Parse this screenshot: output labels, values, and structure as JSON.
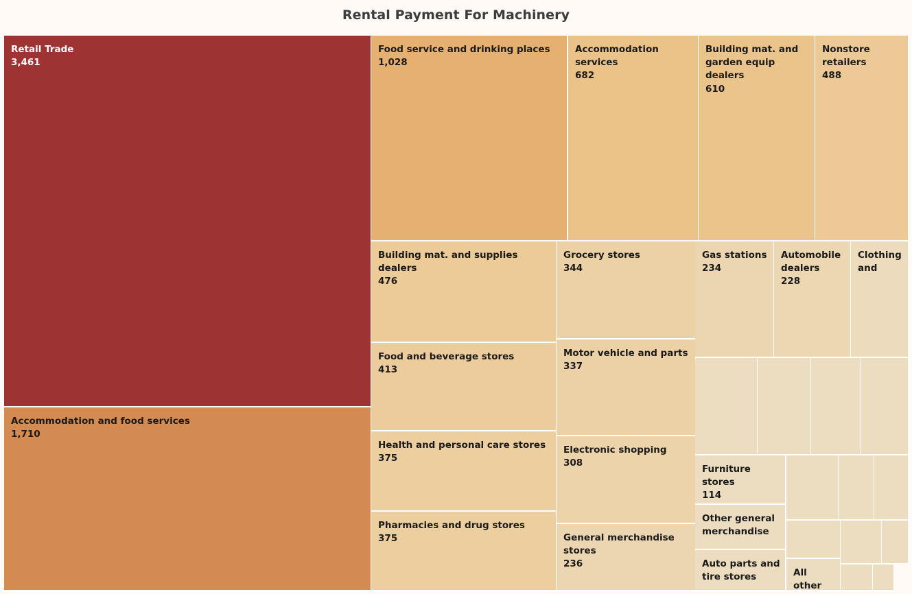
{
  "chart_data": {
    "type": "treemap",
    "title": "Rental Payment For Machinery",
    "items": [
      {
        "name": "Retail Trade",
        "value": 3461,
        "value_label": "3,461",
        "color": "#9e3333"
      },
      {
        "name": "Accommodation and food services",
        "value": 1710,
        "value_label": "1,710",
        "color": "#d48b52"
      },
      {
        "name": "Food service and drinking places",
        "value": 1028,
        "value_label": "1,028",
        "color": "#e6b070"
      },
      {
        "name": "Accommodation services",
        "value": 682,
        "value_label": "682",
        "color": "#ebc287"
      },
      {
        "name": "Building mat. and garden equip dealers",
        "value": 610,
        "value_label": "610",
        "color": "#ebc48b"
      },
      {
        "name": "Nonstore retailers",
        "value": 488,
        "value_label": "488",
        "color": "#ecc995"
      },
      {
        "name": "Building mat. and supplies dealers",
        "value": 476,
        "value_label": "476",
        "color": "#eccb99"
      },
      {
        "name": "Food and beverage stores",
        "value": 413,
        "value_label": "413",
        "color": "#eccc9c"
      },
      {
        "name": "Health and personal care stores",
        "value": 375,
        "value_label": "375",
        "color": "#ecce9f"
      },
      {
        "name": "Pharmacies and drug stores",
        "value": 375,
        "value_label": "375",
        "color": "#ecce9f"
      },
      {
        "name": "Grocery stores",
        "value": 344,
        "value_label": "344",
        "color": "#ecd1a6"
      },
      {
        "name": "Motor vehicle and parts",
        "value": 337,
        "value_label": "337",
        "color": "#ecd1a7"
      },
      {
        "name": "Electronic shopping",
        "value": 308,
        "value_label": "308",
        "color": "#ecd3aa"
      },
      {
        "name": "General merchandise stores",
        "value": 236,
        "value_label": "236",
        "color": "#ecd6b2"
      },
      {
        "name": "Gas stations",
        "value": 234,
        "value_label": "234",
        "color": "#ecd6b2"
      },
      {
        "name": "Automobile dealers",
        "value": 228,
        "value_label": "228",
        "color": "#ecd7b3"
      },
      {
        "name": "Clothing and",
        "value": null,
        "value_label": "",
        "color": "#ecdbbd"
      },
      {
        "name": "Furniture stores",
        "value": 114,
        "value_label": "114",
        "color": "#ecddc0"
      },
      {
        "name": "Other general merchandise",
        "value": null,
        "value_label": "",
        "color": "#ecddc0"
      },
      {
        "name": "Auto parts and tire stores",
        "value": null,
        "value_label": "",
        "color": "#ecddc0"
      },
      {
        "name": "All other",
        "value": null,
        "value_label": "",
        "color": "#ecddc0"
      },
      {
        "name": "",
        "value": null,
        "value_label": "",
        "color": "#ecdcc0"
      },
      {
        "name": "",
        "value": null,
        "value_label": "",
        "color": "#ecdcc0"
      },
      {
        "name": "",
        "value": null,
        "value_label": "",
        "color": "#ecdcc0"
      },
      {
        "name": "",
        "value": null,
        "value_label": "",
        "color": "#ecdcc0"
      },
      {
        "name": "",
        "value": null,
        "value_label": "",
        "color": "#ecdcc0"
      },
      {
        "name": "",
        "value": null,
        "value_label": "",
        "color": "#ecdcc0"
      },
      {
        "name": "",
        "value": null,
        "value_label": "",
        "color": "#ecdcc0"
      },
      {
        "name": "",
        "value": null,
        "value_label": "",
        "color": "#ecdcc0"
      },
      {
        "name": "",
        "value": null,
        "value_label": "",
        "color": "#ecdcc0"
      },
      {
        "name": "",
        "value": null,
        "value_label": "",
        "color": "#ecdcc0"
      },
      {
        "name": "",
        "value": null,
        "value_label": "",
        "color": "#ecdcc0"
      },
      {
        "name": "",
        "value": null,
        "value_label": "",
        "color": "#ecdcc0"
      }
    ]
  }
}
